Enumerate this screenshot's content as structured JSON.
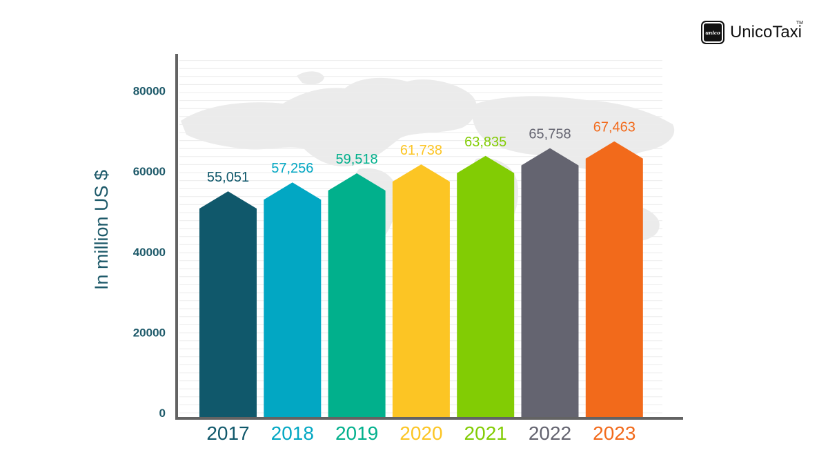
{
  "brand": {
    "name": "UnicoTaxi",
    "tm": "TM",
    "mark_text": "unico"
  },
  "colors": {
    "axis": "#636363",
    "ylabel": "#1e5a6a",
    "tick": "#1e5a6a",
    "grid": "#ececec",
    "map": "#e9e9e9"
  },
  "chart_data": {
    "type": "bar",
    "title": "",
    "xlabel": "",
    "ylabel": "In million US $",
    "ylim": [
      0,
      90000
    ],
    "yticks": [
      0,
      20000,
      40000,
      60000,
      80000
    ],
    "grid": true,
    "categories": [
      "2017",
      "2018",
      "2019",
      "2020",
      "2021",
      "2022",
      "2023"
    ],
    "values": [
      55051,
      57256,
      59518,
      61738,
      63835,
      65758,
      67463
    ],
    "data_labels": [
      "55,051",
      "57,256",
      "59,518",
      "61,738",
      "63,835",
      "65,758",
      "67,463"
    ],
    "bar_colors": [
      "#10586b",
      "#02a7c3",
      "#01b08c",
      "#fcc524",
      "#82cc04",
      "#646470",
      "#f26a1b"
    ],
    "label_colors": [
      "#10586b",
      "#02a7c3",
      "#01b08c",
      "#fcc524",
      "#82cc04",
      "#646470",
      "#f26a1b"
    ]
  }
}
